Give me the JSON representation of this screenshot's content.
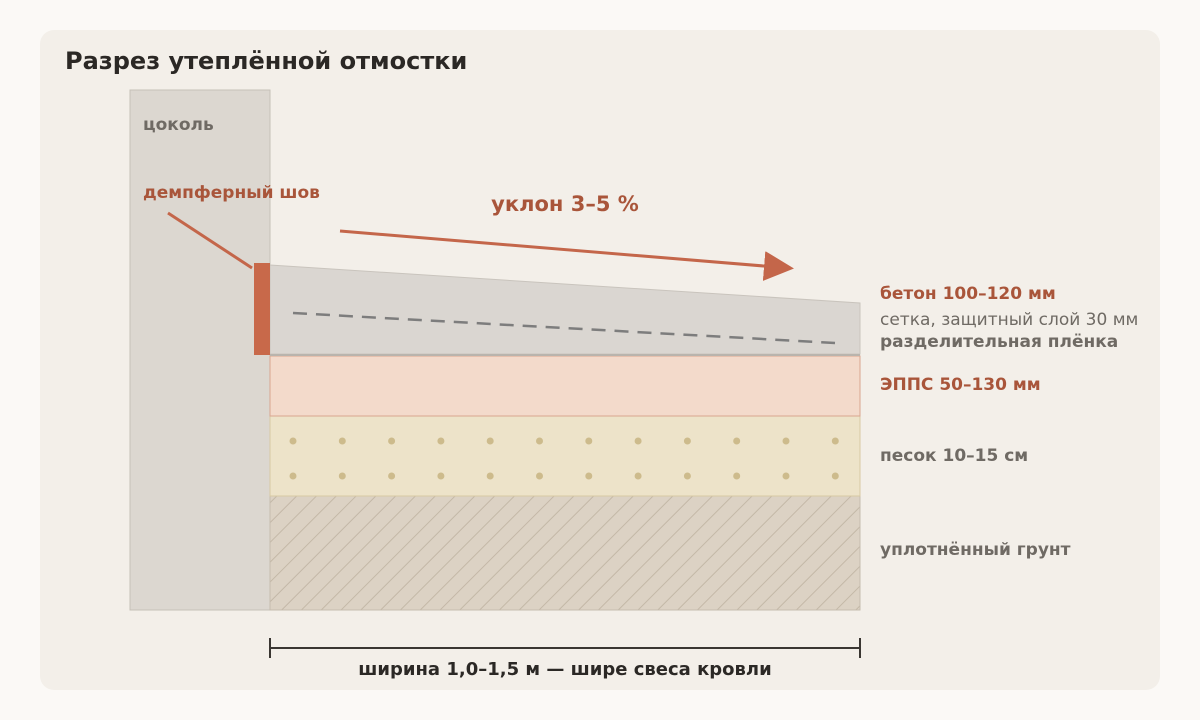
{
  "title": "Разрез утеплённой отмостки",
  "wall": {
    "label": "цоколь",
    "damper_label": "демпферный шов"
  },
  "slope_label": "уклон 3–5 %",
  "layers": {
    "concrete": "бетон 100–120 мм",
    "mesh": "сетка, защитный слой 30 мм",
    "film": "разделительная плёнка",
    "epps": "ЭППС 50–130 мм",
    "sand": "песок 10–15 см",
    "ground": "уплотнённый грунт"
  },
  "width_label": "ширина 1,0–1,5 м — шире свеса кровли"
}
